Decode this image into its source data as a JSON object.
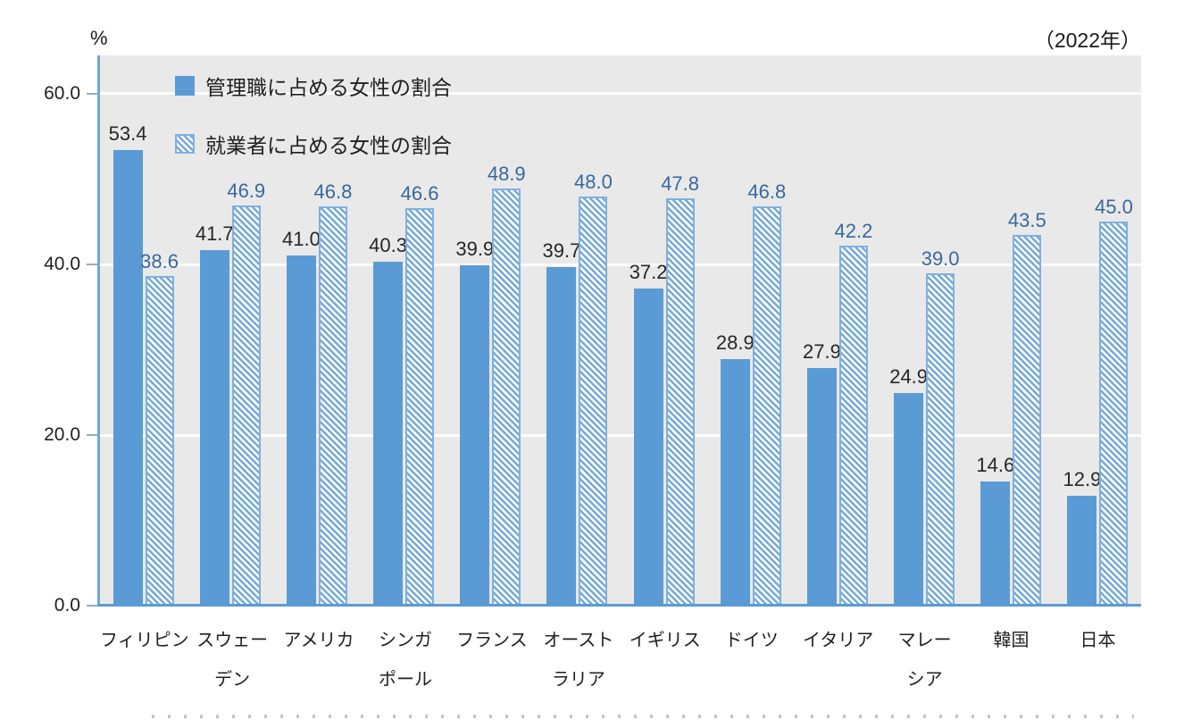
{
  "chart": {
    "percent_label": "%",
    "year_label": "（2022年）"
  },
  "chart_data": {
    "type": "bar",
    "title": "",
    "xlabel": "",
    "ylabel": "%",
    "year": "2022",
    "categories": [
      "フィリピン",
      "スウェーデン",
      "アメリカ",
      "シンガポール",
      "フランス",
      "オーストラリア",
      "イギリス",
      "ドイツ",
      "イタリア",
      "マレーシア",
      "韓国",
      "日本"
    ],
    "category_lines": [
      [
        "フィリピン"
      ],
      [
        "スウェー",
        "デン"
      ],
      [
        "アメリカ"
      ],
      [
        "シンガ",
        "ポール"
      ],
      [
        "フランス"
      ],
      [
        "オースト",
        "ラリア"
      ],
      [
        "イギリス"
      ],
      [
        "ドイツ"
      ],
      [
        "イタリア"
      ],
      [
        "マレー",
        "シア"
      ],
      [
        "韓国"
      ],
      [
        "日本"
      ]
    ],
    "series": [
      {
        "name": "管理職に占める女性の割合",
        "style": "solid",
        "color": "#5b9bd5",
        "label_color": "#262626",
        "values": [
          53.4,
          41.7,
          41.0,
          40.3,
          39.9,
          39.7,
          37.2,
          28.9,
          27.9,
          24.9,
          14.6,
          12.9
        ]
      },
      {
        "name": "就業者に占める女性の割合",
        "style": "hatched",
        "hatch_bg": "#ffffff",
        "stripe_color": "#74a9d8",
        "border_color": "#7fb0dd",
        "label_color": "#36699e",
        "values": [
          38.6,
          46.9,
          46.8,
          46.6,
          48.9,
          48.0,
          47.8,
          46.8,
          42.2,
          39.0,
          43.5,
          45.0
        ]
      }
    ],
    "yticks": [
      0,
      20,
      40,
      60
    ],
    "ytick_labels": [
      "0.0",
      "20.0",
      "40.0",
      "60.0"
    ],
    "ylim": [
      0,
      64.5
    ],
    "grid": true,
    "grid_color": "#ffffff",
    "plot_bg": "#e9e9e9",
    "axis_color": "#74a6d4",
    "baseline_color": "#5b9bd5",
    "legend_position": "top-left"
  }
}
